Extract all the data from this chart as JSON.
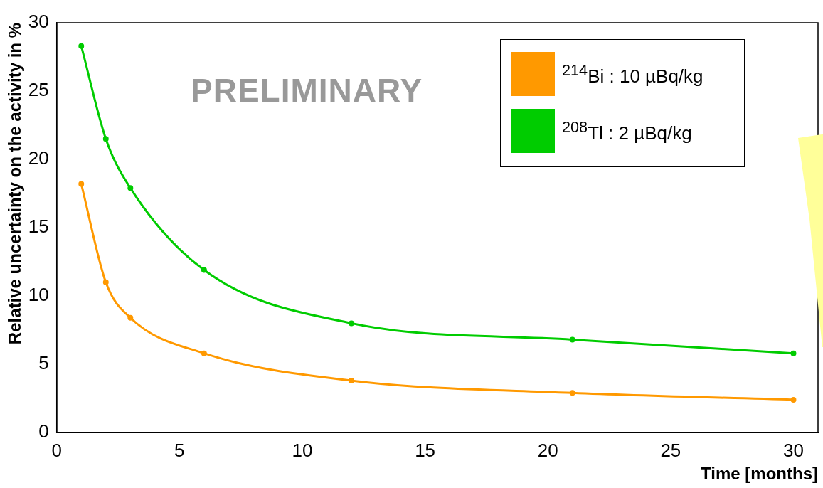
{
  "chart_data": {
    "type": "line",
    "xlabel": "Time [months]",
    "ylabel": "Relative uncertainty on the activity in %",
    "annotations": [
      "PRELIMINARY"
    ],
    "x": [
      1,
      2,
      3,
      6,
      12,
      21,
      30
    ],
    "series": [
      {
        "name": "$^{214}$Bi : 10 µBq/kg",
        "color": "#ff9900",
        "values": [
          18.2,
          11.0,
          8.4,
          5.8,
          3.8,
          2.9,
          2.4
        ]
      },
      {
        "name": "$^{208}$Tl : 2 µBq/kg",
        "color": "#00cc00",
        "values": [
          28.3,
          21.5,
          17.9,
          11.9,
          8.0,
          6.8,
          5.8
        ]
      }
    ],
    "xlim": [
      0,
      31
    ],
    "xticks": [
      0,
      5,
      10,
      15,
      20,
      25,
      30
    ],
    "ylim": [
      0,
      30
    ],
    "yticks": [
      0,
      5,
      10,
      15,
      20,
      25,
      30
    ],
    "grid": false,
    "legend": "top right",
    "marker": "circle",
    "line_style": "solid"
  }
}
